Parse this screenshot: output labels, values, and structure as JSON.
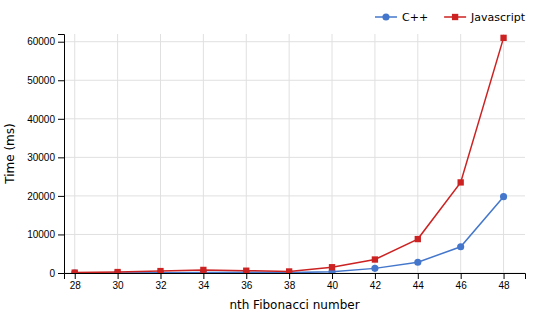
{
  "chart_data": {
    "type": "line",
    "xlabel": "nth Fibonacci number",
    "ylabel": "Time (ms)",
    "x": [
      28,
      30,
      32,
      34,
      36,
      38,
      40,
      42,
      44,
      46,
      48
    ],
    "series": [
      {
        "name": "C++",
        "color": "#4477cc",
        "marker": "circle",
        "values": [
          5,
          20,
          50,
          120,
          200,
          100,
          300,
          1200,
          2800,
          6800,
          19800
        ]
      },
      {
        "name": "Javascript",
        "color": "#cc2222",
        "marker": "square",
        "values": [
          100,
          250,
          500,
          800,
          600,
          400,
          1500,
          3500,
          8800,
          23500,
          61000
        ]
      }
    ],
    "xlim": [
      27.5,
      49
    ],
    "ylim": [
      0,
      62000
    ],
    "xticks": [
      28,
      30,
      32,
      34,
      36,
      38,
      40,
      42,
      44,
      46,
      48
    ],
    "yticks": [
      0,
      10000,
      20000,
      30000,
      40000,
      50000,
      60000
    ],
    "grid": true,
    "legend": "upper right"
  }
}
